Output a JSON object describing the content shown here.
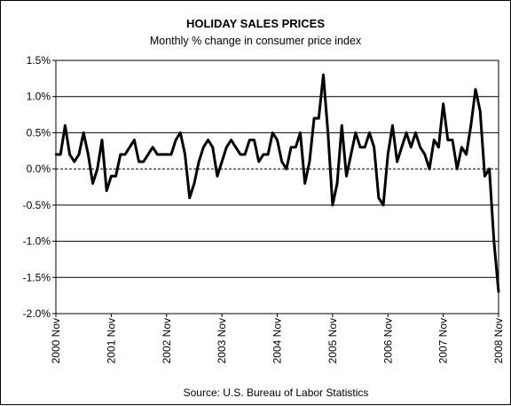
{
  "chart_data": {
    "type": "line",
    "title": "HOLIDAY SALES PRICES",
    "subtitle": "Monthly % change in consumer price index",
    "source": "Source: U.S. Bureau of Labor Statistics",
    "xlabel": "",
    "ylabel": "",
    "ylim": [
      -2.0,
      1.5
    ],
    "yticks": [
      1.5,
      1.0,
      0.5,
      0.0,
      -0.5,
      -1.0,
      -1.5,
      -2.0
    ],
    "ytick_labels": [
      "1.5%",
      "1.0%",
      "0.5%",
      "0.0%",
      "-0.5%",
      "-1.0%",
      "-1.5%",
      "-2.0%"
    ],
    "grid": true,
    "legend": "none",
    "line_color": "#000000",
    "x_tick_labels": [
      "2000 Nov",
      "2001 Nov",
      "2002 Nov",
      "2003 Nov",
      "2004 Nov",
      "2005 Nov",
      "2006 Nov",
      "2007 Nov",
      "2008 Nov"
    ],
    "x_start": "2000 Nov",
    "x_end": "2008 Nov",
    "series": [
      {
        "values": [
          0.2,
          0.2,
          0.6,
          0.2,
          0.1,
          0.2,
          0.5,
          0.2,
          -0.2,
          0.0,
          0.4,
          -0.3,
          -0.1,
          -0.1,
          0.2,
          0.2,
          0.3,
          0.4,
          0.1,
          0.1,
          0.2,
          0.3,
          0.2,
          0.2,
          0.2,
          0.2,
          0.4,
          0.5,
          0.2,
          -0.4,
          -0.2,
          0.1,
          0.3,
          0.4,
          0.3,
          -0.1,
          0.1,
          0.3,
          0.4,
          0.3,
          0.2,
          0.2,
          0.4,
          0.4,
          0.1,
          0.2,
          0.2,
          0.5,
          0.4,
          0.1,
          0.0,
          0.3,
          0.3,
          0.5,
          -0.2,
          0.1,
          0.7,
          0.7,
          1.3,
          0.5,
          -0.5,
          -0.2,
          0.6,
          -0.1,
          0.2,
          0.5,
          0.3,
          0.3,
          0.5,
          0.3,
          -0.4,
          -0.5,
          0.2,
          0.6,
          0.1,
          0.3,
          0.5,
          0.3,
          0.5,
          0.3,
          0.2,
          0.0,
          0.4,
          0.3,
          0.9,
          0.4,
          0.4,
          0.0,
          0.3,
          0.2,
          0.6,
          1.1,
          0.8,
          -0.1,
          0.0,
          -1.0,
          -1.7
        ]
      }
    ]
  }
}
